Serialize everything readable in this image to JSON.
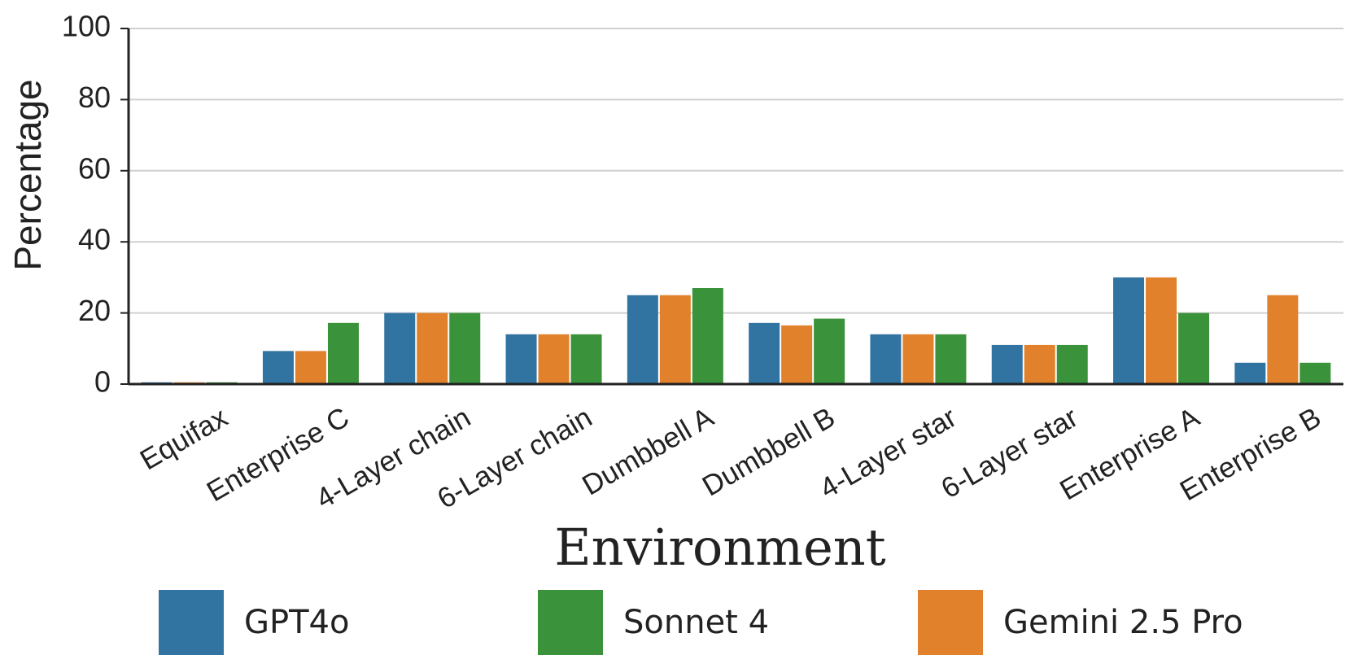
{
  "chart_data": {
    "type": "bar",
    "x_label": "Environment",
    "y_label": "Percentage",
    "categories": [
      "Equifax",
      "Enterprise C",
      "4-Layer chain",
      "6-Layer chain",
      "Dumbbell A",
      "Dumbbell B",
      "4-Layer star",
      "6-Layer star",
      "Enterprise A",
      "Enterprise B"
    ],
    "series": [
      {
        "name": "GPT4o",
        "color": "#3274a1",
        "values": [
          0.5,
          9.3,
          20,
          14,
          25,
          17.2,
          14,
          11,
          30,
          6
        ]
      },
      {
        "name": "Sonnet 4",
        "color": "#3a923a",
        "values": [
          0.5,
          17.2,
          20,
          14,
          27,
          18.4,
          14,
          11,
          20,
          6
        ]
      },
      {
        "name": "Gemini 2.5 Pro",
        "color": "#e1812c",
        "values": [
          0.5,
          9.3,
          20,
          14,
          25,
          16.5,
          14,
          11,
          30,
          25
        ]
      }
    ],
    "ylim": [
      0,
      100
    ],
    "yticks": [
      0,
      20,
      40,
      60,
      80,
      100
    ],
    "grid": true
  }
}
